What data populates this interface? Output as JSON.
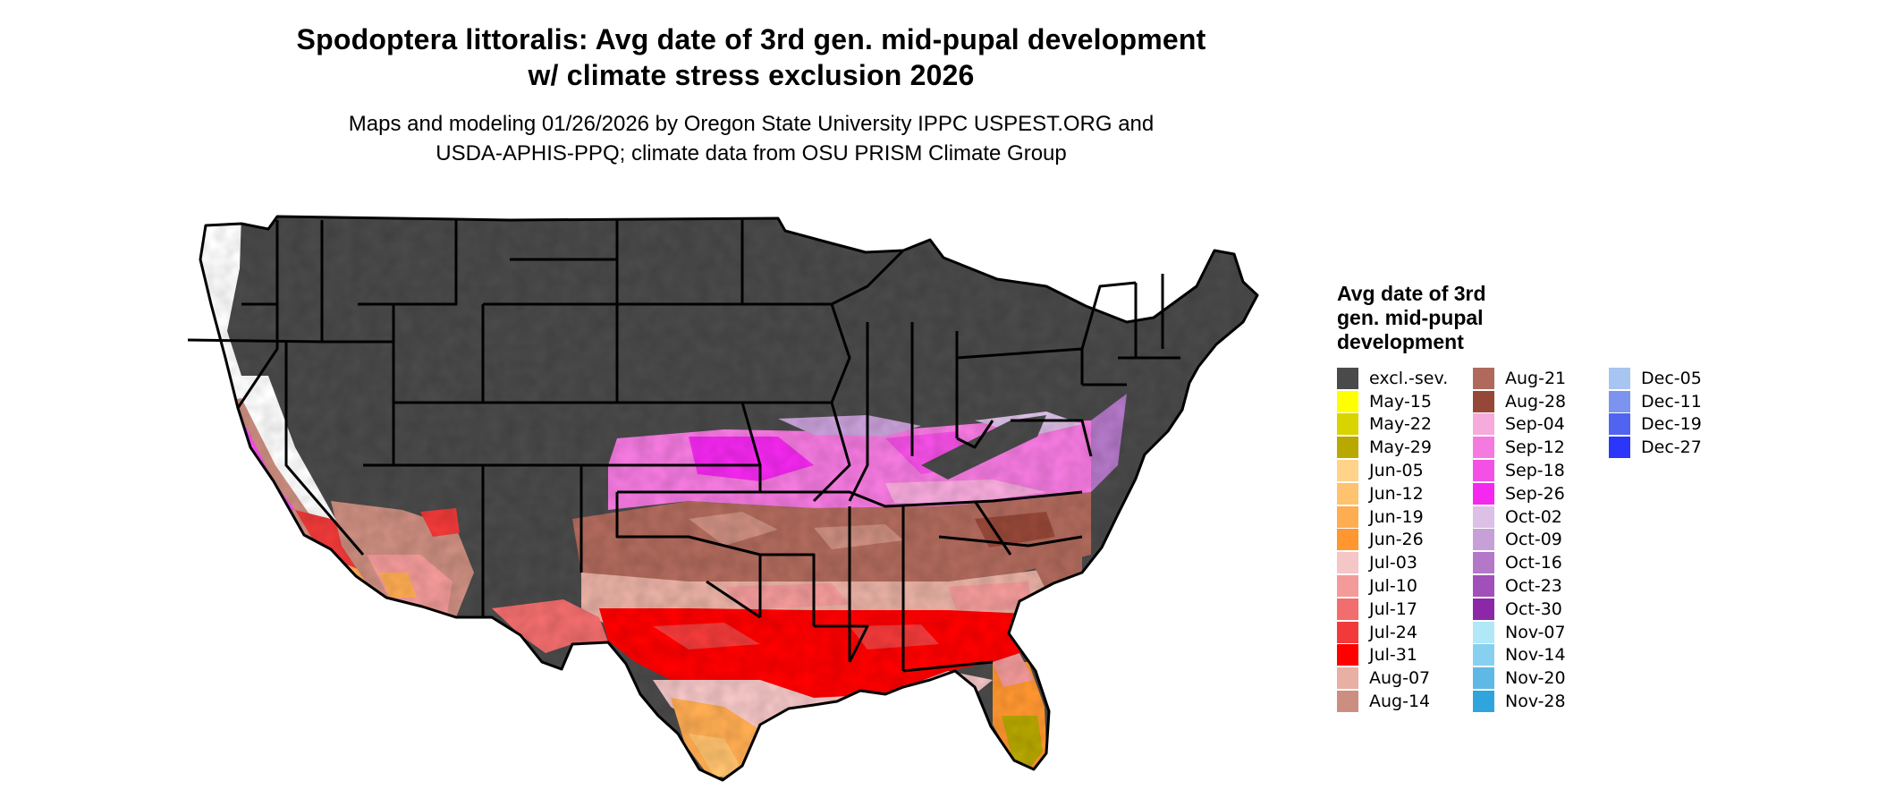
{
  "title": {
    "line1": "Spodoptera littoralis: Avg date of 3rd gen. mid-pupal development",
    "line2": "w/ climate stress exclusion 2026"
  },
  "subtitle": {
    "line1": "Maps and modeling 01/26/2026 by Oregon State University IPPC USPEST.ORG and",
    "line2": "USDA-APHIS-PPQ; climate data from OSU PRISM Climate Group"
  },
  "map": {
    "region": "contiguous-united-states",
    "excluded_color": "#4a4a4a",
    "border_color": "#000000"
  },
  "legend": {
    "title_lines": [
      "Avg date of 3rd",
      "gen. mid-pupal",
      "development"
    ],
    "columns": [
      [
        {
          "label": "excl.-sev.",
          "color": "#4a4a4a"
        },
        {
          "label": "May-15",
          "color": "#ffff00"
        },
        {
          "label": "May-22",
          "color": "#d9d400"
        },
        {
          "label": "May-29",
          "color": "#b8a800"
        },
        {
          "label": "Jun-05",
          "color": "#ffd38a"
        },
        {
          "label": "Jun-12",
          "color": "#ffc26e"
        },
        {
          "label": "Jun-19",
          "color": "#ffad52"
        },
        {
          "label": "Jun-26",
          "color": "#ff9630"
        },
        {
          "label": "Jul-03",
          "color": "#f5c6c6"
        },
        {
          "label": "Jul-10",
          "color": "#f39a9a"
        },
        {
          "label": "Jul-17",
          "color": "#f26d6d"
        },
        {
          "label": "Jul-24",
          "color": "#f23a3a"
        },
        {
          "label": "Jul-31",
          "color": "#ff0000"
        },
        {
          "label": "Aug-07",
          "color": "#e8b0a4"
        },
        {
          "label": "Aug-14",
          "color": "#cc8e80"
        }
      ],
      [
        {
          "label": "Aug-21",
          "color": "#b06a5c"
        },
        {
          "label": "Aug-28",
          "color": "#964838"
        },
        {
          "label": "Sep-04",
          "color": "#f7aadc"
        },
        {
          "label": "Sep-12",
          "color": "#f57ae0"
        },
        {
          "label": "Sep-18",
          "color": "#f550e6"
        },
        {
          "label": "Sep-26",
          "color": "#f528f0"
        },
        {
          "label": "Oct-02",
          "color": "#dcc0e6"
        },
        {
          "label": "Oct-09",
          "color": "#c8a0d8"
        },
        {
          "label": "Oct-16",
          "color": "#b478c8"
        },
        {
          "label": "Oct-23",
          "color": "#a050b8"
        },
        {
          "label": "Oct-30",
          "color": "#8c28a8"
        },
        {
          "label": "Nov-07",
          "color": "#b0e8f8"
        },
        {
          "label": "Nov-14",
          "color": "#88d0f0"
        },
        {
          "label": "Nov-20",
          "color": "#60b8e4"
        },
        {
          "label": "Nov-28",
          "color": "#30a4dc"
        }
      ],
      [
        {
          "label": "Dec-05",
          "color": "#a8c4f0"
        },
        {
          "label": "Dec-11",
          "color": "#7c94f0"
        },
        {
          "label": "Dec-19",
          "color": "#5064f0"
        },
        {
          "label": "Dec-27",
          "color": "#2a36fa"
        }
      ]
    ]
  }
}
